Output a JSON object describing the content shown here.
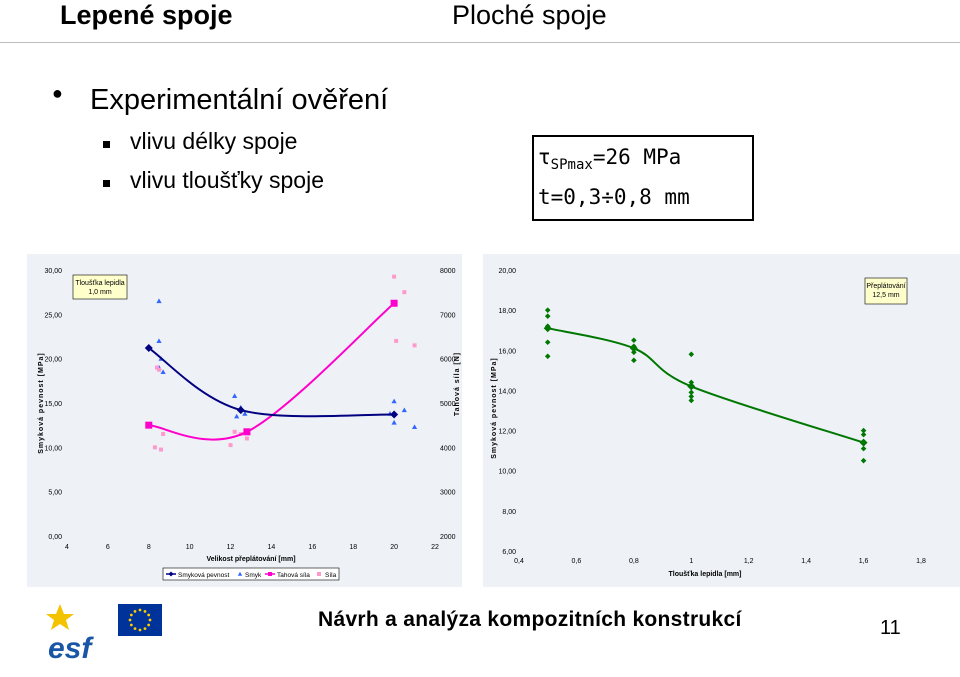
{
  "header": {
    "left_title": "Lepené spoje",
    "right_title": "Ploché spoje"
  },
  "bullet": {
    "main": "Experimentální ověření",
    "sub_items": [
      "vlivu délky spoje",
      "vlivu tloušťky spoje"
    ]
  },
  "info_box": {
    "tau_symbol": "τ",
    "tau_sub": "SPmax",
    "tau_value": "=26 MPa",
    "thickness": "t=0,3÷0,8 mm"
  },
  "footer": {
    "title": "Návrh a analýza kompozitních konstrukcí",
    "page_number": "11",
    "logo_text": "esf"
  },
  "colors": {
    "shear": "#000080",
    "force": "#ff00cc",
    "force_points": "#ff99cc",
    "green": "#007700",
    "panel": "#eef2f7",
    "note_box": "#ffffcc"
  },
  "chart_data": [
    {
      "type": "line",
      "note": "Tloušťka lepidla\n1,0 mm",
      "note_lines": [
        "Tloušťka lepidla",
        "1,0 mm"
      ],
      "xlabel": "Velikost přeplátování [mm]",
      "ylabel": "Smyková pevnost [MPa]",
      "y2label": "Tahová síla [N]",
      "xlim": [
        4,
        22
      ],
      "ylim": [
        0,
        30
      ],
      "y2lim": [
        2000,
        8000
      ],
      "x_ticks": [
        "4",
        "6",
        "8",
        "10",
        "12",
        "14",
        "16",
        "18",
        "20",
        "22"
      ],
      "y_ticks": [
        "0,00",
        "5,00",
        "10,00",
        "15,00",
        "20,00",
        "25,00",
        "30,00"
      ],
      "y2_ticks": [
        "2000",
        "3000",
        "4000",
        "5000",
        "6000",
        "7000",
        "8000"
      ],
      "legend": [
        "Smyková pevnost",
        "Smyk",
        "Tahová síla",
        "Síla"
      ],
      "series": [
        {
          "name": "Smyková pevnost",
          "axis": "left",
          "x": [
            8,
            12.5,
            20
          ],
          "y": [
            21.2,
            14.2,
            13.7
          ]
        },
        {
          "name": "Smyk",
          "axis": "left",
          "x": [
            8.5,
            8.5,
            8.6,
            8.5,
            8.7,
            12.2,
            12.5,
            12.7,
            12.3,
            20,
            20.5,
            19.8,
            20,
            21
          ],
          "y": [
            26.5,
            22,
            20,
            19,
            18.5,
            15.8,
            14.5,
            13.8,
            13.5,
            15.2,
            14.2,
            13.8,
            12.8,
            12.3
          ]
        },
        {
          "name": "Tahová síla",
          "axis": "right",
          "x": [
            8,
            12.8,
            20
          ],
          "y": [
            4500,
            4350,
            7250
          ]
        },
        {
          "name": "Síla",
          "axis": "right",
          "x": [
            8.4,
            8.5,
            8.7,
            8.3,
            8.6,
            12.2,
            12.5,
            12.8,
            12.0,
            20,
            20.5,
            20.1,
            21
          ],
          "y": [
            5800,
            5750,
            4300,
            4000,
            3950,
            4350,
            4300,
            4200,
            4050,
            7850,
            7500,
            6400,
            6300
          ]
        }
      ]
    },
    {
      "type": "line",
      "note": "Přeplátování\n12,5 mm",
      "note_lines": [
        "Přeplátování",
        "12,5 mm"
      ],
      "xlabel": "Tloušťka lepidla [mm]",
      "ylabel": "Smyková pevnost [MPa]",
      "xlim": [
        0.4,
        1.8
      ],
      "ylim": [
        6,
        20
      ],
      "x_ticks": [
        "0,4",
        "0,6",
        "0,8",
        "1",
        "1,2",
        "1,4",
        "1,6",
        "1,8"
      ],
      "y_ticks": [
        "6,00",
        "8,00",
        "10,00",
        "12,00",
        "14,00",
        "16,00",
        "18,00",
        "20,00"
      ],
      "series": [
        {
          "name": "Smyková pevnost",
          "x": [
            0.5,
            0.8,
            1.0,
            1.6
          ],
          "y": [
            17.1,
            16.1,
            14.2,
            11.4
          ]
        },
        {
          "name": "points",
          "x": [
            0.5,
            0.5,
            0.5,
            0.5,
            0.5,
            0.8,
            0.8,
            0.8,
            0.8,
            1.0,
            1.0,
            1.0,
            1.0,
            1.0,
            1.0,
            1.6,
            1.6,
            1.6,
            1.6,
            1.6
          ],
          "y": [
            18,
            17.7,
            17.2,
            16.4,
            15.7,
            16.5,
            16.2,
            15.9,
            15.5,
            15.8,
            14.4,
            14.2,
            13.9,
            13.7,
            13.5,
            12,
            11.8,
            11.4,
            11.1,
            10.5
          ]
        }
      ]
    }
  ]
}
